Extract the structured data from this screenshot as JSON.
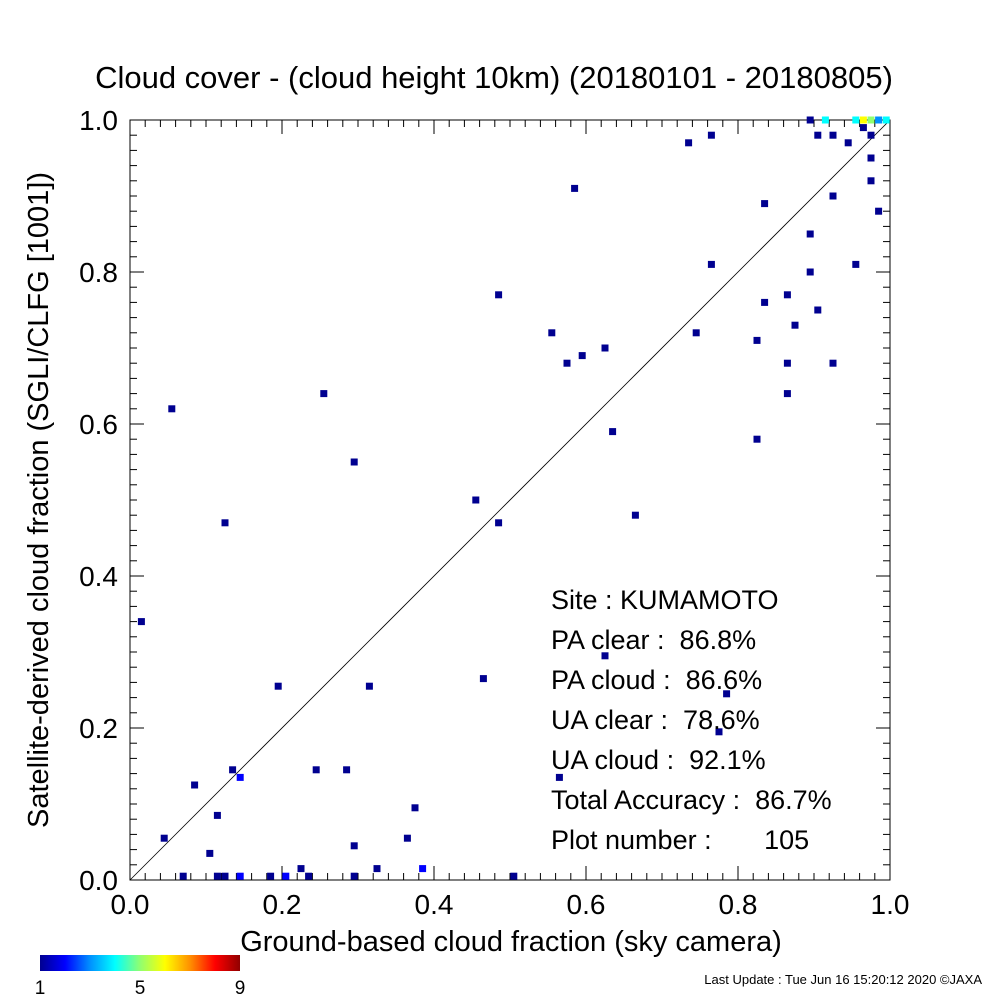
{
  "chart_data": {
    "type": "scatter",
    "title": "Cloud cover - (cloud height 10km)  (20180101 - 20180805)",
    "xlabel": "Ground-based cloud fraction (sky camera)",
    "ylabel": "Satellite-derived cloud fraction (SGLI/CLFG [1001])",
    "xlim": [
      0.0,
      1.0
    ],
    "ylim": [
      0.0,
      1.0
    ],
    "x_ticks": [
      "0.0",
      "0.2",
      "0.4",
      "0.6",
      "0.8",
      "1.0"
    ],
    "y_ticks": [
      "0.0",
      "0.2",
      "0.4",
      "0.6",
      "0.8",
      "1.0"
    ],
    "grid": false,
    "reference_line": "y = x",
    "colorbar": {
      "labels": [
        "1",
        "5",
        "9"
      ],
      "min": 1,
      "max": 9,
      "colors": [
        "#000090",
        "#0000ff",
        "#0090ff",
        "#00ffff",
        "#90ff70",
        "#ffff00",
        "#ff9000",
        "#ff0000",
        "#900000"
      ]
    },
    "points": [
      {
        "x": 0.015,
        "y": 0.34,
        "count": 1
      },
      {
        "x": 0.045,
        "y": 0.055,
        "count": 1
      },
      {
        "x": 0.055,
        "y": 0.62,
        "count": 1
      },
      {
        "x": 0.07,
        "y": 0.005,
        "count": 1
      },
      {
        "x": 0.085,
        "y": 0.125,
        "count": 1
      },
      {
        "x": 0.105,
        "y": 0.035,
        "count": 1
      },
      {
        "x": 0.115,
        "y": 0.085,
        "count": 1
      },
      {
        "x": 0.115,
        "y": 0.005,
        "count": 1
      },
      {
        "x": 0.125,
        "y": 0.005,
        "count": 1
      },
      {
        "x": 0.125,
        "y": 0.47,
        "count": 1
      },
      {
        "x": 0.135,
        "y": 0.145,
        "count": 1
      },
      {
        "x": 0.145,
        "y": 0.135,
        "count": 2
      },
      {
        "x": 0.145,
        "y": 0.005,
        "count": 2
      },
      {
        "x": 0.185,
        "y": 0.005,
        "count": 1
      },
      {
        "x": 0.195,
        "y": 0.255,
        "count": 1
      },
      {
        "x": 0.205,
        "y": 0.005,
        "count": 2
      },
      {
        "x": 0.225,
        "y": 0.015,
        "count": 1
      },
      {
        "x": 0.235,
        "y": 0.005,
        "count": 1
      },
      {
        "x": 0.245,
        "y": 0.145,
        "count": 1
      },
      {
        "x": 0.255,
        "y": 0.64,
        "count": 1
      },
      {
        "x": 0.285,
        "y": 0.145,
        "count": 1
      },
      {
        "x": 0.295,
        "y": 0.045,
        "count": 1
      },
      {
        "x": 0.295,
        "y": 0.55,
        "count": 1
      },
      {
        "x": 0.295,
        "y": 0.005,
        "count": 1
      },
      {
        "x": 0.315,
        "y": 0.255,
        "count": 1
      },
      {
        "x": 0.325,
        "y": 0.015,
        "count": 1
      },
      {
        "x": 0.365,
        "y": 0.055,
        "count": 1
      },
      {
        "x": 0.375,
        "y": 0.095,
        "count": 1
      },
      {
        "x": 0.385,
        "y": 0.015,
        "count": 2
      },
      {
        "x": 0.455,
        "y": 0.5,
        "count": 1
      },
      {
        "x": 0.465,
        "y": 0.265,
        "count": 1
      },
      {
        "x": 0.485,
        "y": 0.77,
        "count": 1
      },
      {
        "x": 0.485,
        "y": 0.47,
        "count": 1
      },
      {
        "x": 0.505,
        "y": 0.005,
        "count": 1
      },
      {
        "x": 0.555,
        "y": 0.72,
        "count": 1
      },
      {
        "x": 0.565,
        "y": 0.135,
        "count": 1
      },
      {
        "x": 0.575,
        "y": 0.68,
        "count": 1
      },
      {
        "x": 0.585,
        "y": 0.91,
        "count": 1
      },
      {
        "x": 0.595,
        "y": 0.69,
        "count": 1
      },
      {
        "x": 0.625,
        "y": 0.7,
        "count": 1
      },
      {
        "x": 0.625,
        "y": 0.295,
        "count": 1
      },
      {
        "x": 0.635,
        "y": 0.59,
        "count": 1
      },
      {
        "x": 0.665,
        "y": 0.48,
        "count": 1
      },
      {
        "x": 0.735,
        "y": 0.97,
        "count": 1
      },
      {
        "x": 0.745,
        "y": 0.72,
        "count": 1
      },
      {
        "x": 0.765,
        "y": 0.98,
        "count": 1
      },
      {
        "x": 0.765,
        "y": 0.81,
        "count": 1
      },
      {
        "x": 0.775,
        "y": 0.195,
        "count": 1
      },
      {
        "x": 0.785,
        "y": 0.245,
        "count": 1
      },
      {
        "x": 0.825,
        "y": 0.71,
        "count": 1
      },
      {
        "x": 0.825,
        "y": 0.58,
        "count": 1
      },
      {
        "x": 0.835,
        "y": 0.89,
        "count": 1
      },
      {
        "x": 0.835,
        "y": 0.76,
        "count": 1
      },
      {
        "x": 0.865,
        "y": 0.77,
        "count": 1
      },
      {
        "x": 0.865,
        "y": 0.68,
        "count": 1
      },
      {
        "x": 0.865,
        "y": 0.64,
        "count": 1
      },
      {
        "x": 0.875,
        "y": 0.73,
        "count": 1
      },
      {
        "x": 0.895,
        "y": 1.0,
        "count": 1
      },
      {
        "x": 0.895,
        "y": 0.85,
        "count": 1
      },
      {
        "x": 0.895,
        "y": 0.8,
        "count": 1
      },
      {
        "x": 0.905,
        "y": 0.98,
        "count": 1
      },
      {
        "x": 0.905,
        "y": 0.75,
        "count": 1
      },
      {
        "x": 0.915,
        "y": 1.0,
        "count": 4
      },
      {
        "x": 0.925,
        "y": 0.98,
        "count": 1
      },
      {
        "x": 0.925,
        "y": 0.9,
        "count": 1
      },
      {
        "x": 0.925,
        "y": 0.68,
        "count": 1
      },
      {
        "x": 0.945,
        "y": 0.97,
        "count": 1
      },
      {
        "x": 0.955,
        "y": 1.0,
        "count": 4
      },
      {
        "x": 0.955,
        "y": 0.81,
        "count": 1
      },
      {
        "x": 0.965,
        "y": 1.0,
        "count": 6
      },
      {
        "x": 0.965,
        "y": 0.99,
        "count": 1
      },
      {
        "x": 0.975,
        "y": 1.0,
        "count": 5
      },
      {
        "x": 0.975,
        "y": 0.98,
        "count": 1
      },
      {
        "x": 0.975,
        "y": 0.95,
        "count": 1
      },
      {
        "x": 0.975,
        "y": 0.92,
        "count": 1
      },
      {
        "x": 0.985,
        "y": 1.0,
        "count": 3
      },
      {
        "x": 0.985,
        "y": 0.88,
        "count": 1
      },
      {
        "x": 0.995,
        "y": 1.0,
        "count": 4
      }
    ],
    "annotations": [
      "Site : KUMAMOTO",
      "PA clear :  86.8%",
      "PA cloud :  86.6%",
      "UA clear :  78.6%",
      "UA cloud :  92.1%",
      "Total Accuracy :  86.7%",
      "Plot number :       105"
    ]
  },
  "footer": "Last Update : Tue Jun 16 15:20:12 2020  ©JAXA"
}
